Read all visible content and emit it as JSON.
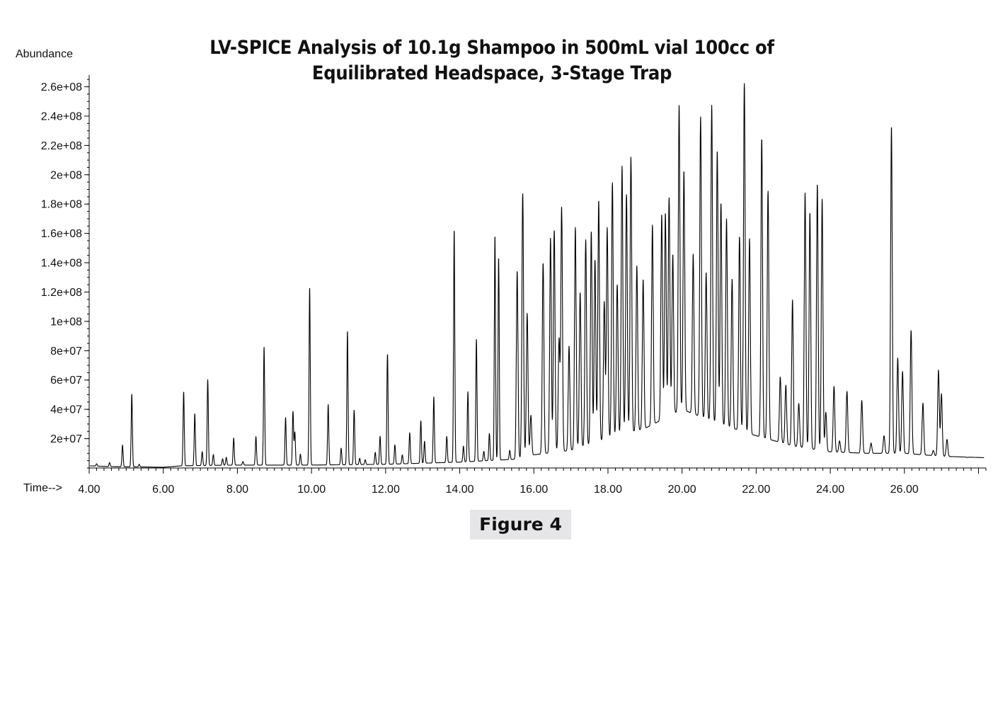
{
  "figure_label": "Figure 4",
  "chart_data": {
    "type": "line",
    "title": "LV-SPICE Analysis of 10.1g Shampoo in 500mL vial 100cc of Equilibrated Headspace, 3-Stage Trap",
    "title_lines": [
      "LV-SPICE Analysis of 10.1g Shampoo in 500mL vial 100cc of",
      "Equilibrated Headspace, 3-Stage Trap"
    ],
    "ylabel": "Abundance",
    "xlabel": "Time-->",
    "xlim": [
      4.0,
      28.2
    ],
    "ylim": [
      0,
      268000000
    ],
    "x_ticks": [
      4,
      6,
      8,
      10,
      12,
      14,
      16,
      18,
      20,
      22,
      24,
      26
    ],
    "x_tick_labels": [
      "4.00",
      "6.00",
      "8.00",
      "10.00",
      "12.00",
      "14.00",
      "16.00",
      "18.00",
      "20.00",
      "22.00",
      "24.00",
      "26.00"
    ],
    "y_ticks": [
      20000000,
      40000000,
      60000000,
      80000000,
      100000000,
      120000000,
      140000000,
      160000000,
      180000000,
      200000000,
      220000000,
      240000000,
      260000000
    ],
    "y_tick_labels": [
      "2e+07",
      "4e+07",
      "6e+07",
      "8e+07",
      "1e+08",
      "1.2e+08",
      "1.4e+08",
      "1.6e+08",
      "1.8e+08",
      "2e+08",
      "2.2e+08",
      "2.4e+08",
      "2.6e+08"
    ],
    "grid": false,
    "line_color": "#000000",
    "baseline": [
      [
        4.0,
        1500000
      ],
      [
        4.5,
        1000000
      ],
      [
        6.0,
        500000
      ],
      [
        6.5,
        1500000
      ],
      [
        8.0,
        2000000
      ],
      [
        10.0,
        2000000
      ],
      [
        12.0,
        2500000
      ],
      [
        14.0,
        4000000
      ],
      [
        15.5,
        6000000
      ],
      [
        16.0,
        9000000
      ],
      [
        17.0,
        12000000
      ],
      [
        18.0,
        20000000
      ],
      [
        19.0,
        27000000
      ],
      [
        20.0,
        40000000
      ],
      [
        21.0,
        30000000
      ],
      [
        22.0,
        22000000
      ],
      [
        23.0,
        15000000
      ],
      [
        24.0,
        11000000
      ],
      [
        25.0,
        10000000
      ],
      [
        26.0,
        10000000
      ],
      [
        27.0,
        8000000
      ],
      [
        28.2,
        7000000
      ]
    ],
    "peaks": [
      [
        4.2,
        2000000
      ],
      [
        4.55,
        3000000
      ],
      [
        4.9,
        15000000
      ],
      [
        5.15,
        50000000
      ],
      [
        5.35,
        2000000
      ],
      [
        6.55,
        51000000
      ],
      [
        6.85,
        36000000
      ],
      [
        7.05,
        10000000
      ],
      [
        7.2,
        59000000
      ],
      [
        7.35,
        8000000
      ],
      [
        7.6,
        5000000
      ],
      [
        7.7,
        6000000
      ],
      [
        7.9,
        19000000
      ],
      [
        8.15,
        3000000
      ],
      [
        8.5,
        20000000
      ],
      [
        8.72,
        81000000
      ],
      [
        9.3,
        33000000
      ],
      [
        9.5,
        37000000
      ],
      [
        9.55,
        23000000
      ],
      [
        9.7,
        8000000
      ],
      [
        9.95,
        122000000
      ],
      [
        10.45,
        42000000
      ],
      [
        10.8,
        12000000
      ],
      [
        10.97,
        92000000
      ],
      [
        11.15,
        38000000
      ],
      [
        11.3,
        5000000
      ],
      [
        11.45,
        4000000
      ],
      [
        11.72,
        9000000
      ],
      [
        11.85,
        20000000
      ],
      [
        12.05,
        76000000
      ],
      [
        12.25,
        14000000
      ],
      [
        12.45,
        7000000
      ],
      [
        12.65,
        22000000
      ],
      [
        12.95,
        30000000
      ],
      [
        13.05,
        16000000
      ],
      [
        13.3,
        46000000
      ],
      [
        13.65,
        19000000
      ],
      [
        13.85,
        160000000
      ],
      [
        14.1,
        12000000
      ],
      [
        14.22,
        49000000
      ],
      [
        14.45,
        85000000
      ],
      [
        14.65,
        8000000
      ],
      [
        14.8,
        20000000
      ],
      [
        14.95,
        155000000
      ],
      [
        15.05,
        140000000
      ],
      [
        15.35,
        8000000
      ],
      [
        15.55,
        130000000
      ],
      [
        15.7,
        182000000
      ],
      [
        15.82,
        100000000
      ],
      [
        15.92,
        30000000
      ],
      [
        16.25,
        133000000
      ],
      [
        16.45,
        150000000
      ],
      [
        16.55,
        155000000
      ],
      [
        16.68,
        80000000
      ],
      [
        16.75,
        170000000
      ],
      [
        16.95,
        75000000
      ],
      [
        17.12,
        155000000
      ],
      [
        17.25,
        110000000
      ],
      [
        17.4,
        145000000
      ],
      [
        17.55,
        150000000
      ],
      [
        17.65,
        130000000
      ],
      [
        17.75,
        170000000
      ],
      [
        17.9,
        100000000
      ],
      [
        17.98,
        150000000
      ],
      [
        18.12,
        180000000
      ],
      [
        18.25,
        110000000
      ],
      [
        18.38,
        190000000
      ],
      [
        18.5,
        170000000
      ],
      [
        18.62,
        195000000
      ],
      [
        18.78,
        120000000
      ],
      [
        18.95,
        110000000
      ],
      [
        19.2,
        145000000
      ],
      [
        19.45,
        150000000
      ],
      [
        19.55,
        150000000
      ],
      [
        19.65,
        160000000
      ],
      [
        19.75,
        120000000
      ],
      [
        19.92,
        220000000
      ],
      [
        20.05,
        175000000
      ],
      [
        20.3,
        120000000
      ],
      [
        20.5,
        215000000
      ],
      [
        20.65,
        110000000
      ],
      [
        20.8,
        225000000
      ],
      [
        20.95,
        195000000
      ],
      [
        21.05,
        160000000
      ],
      [
        21.2,
        150000000
      ],
      [
        21.35,
        110000000
      ],
      [
        21.55,
        140000000
      ],
      [
        21.68,
        245000000
      ],
      [
        21.82,
        140000000
      ],
      [
        22.15,
        210000000
      ],
      [
        22.32,
        175000000
      ],
      [
        22.65,
        50000000
      ],
      [
        22.8,
        45000000
      ],
      [
        22.98,
        104000000
      ],
      [
        23.15,
        34000000
      ],
      [
        23.32,
        178000000
      ],
      [
        23.45,
        165000000
      ],
      [
        23.65,
        185000000
      ],
      [
        23.78,
        175000000
      ],
      [
        23.88,
        30000000
      ],
      [
        24.1,
        48000000
      ],
      [
        24.25,
        11000000
      ],
      [
        24.45,
        45000000
      ],
      [
        24.85,
        39000000
      ],
      [
        25.1,
        10000000
      ],
      [
        25.45,
        15000000
      ],
      [
        25.65,
        226000000
      ],
      [
        25.82,
        68000000
      ],
      [
        25.95,
        59000000
      ],
      [
        26.18,
        87000000
      ],
      [
        26.5,
        38000000
      ],
      [
        26.78,
        6000000
      ],
      [
        26.92,
        61000000
      ],
      [
        27.0,
        45000000
      ],
      [
        27.15,
        14000000
      ],
      [
        27.7,
        2000000
      ]
    ]
  }
}
